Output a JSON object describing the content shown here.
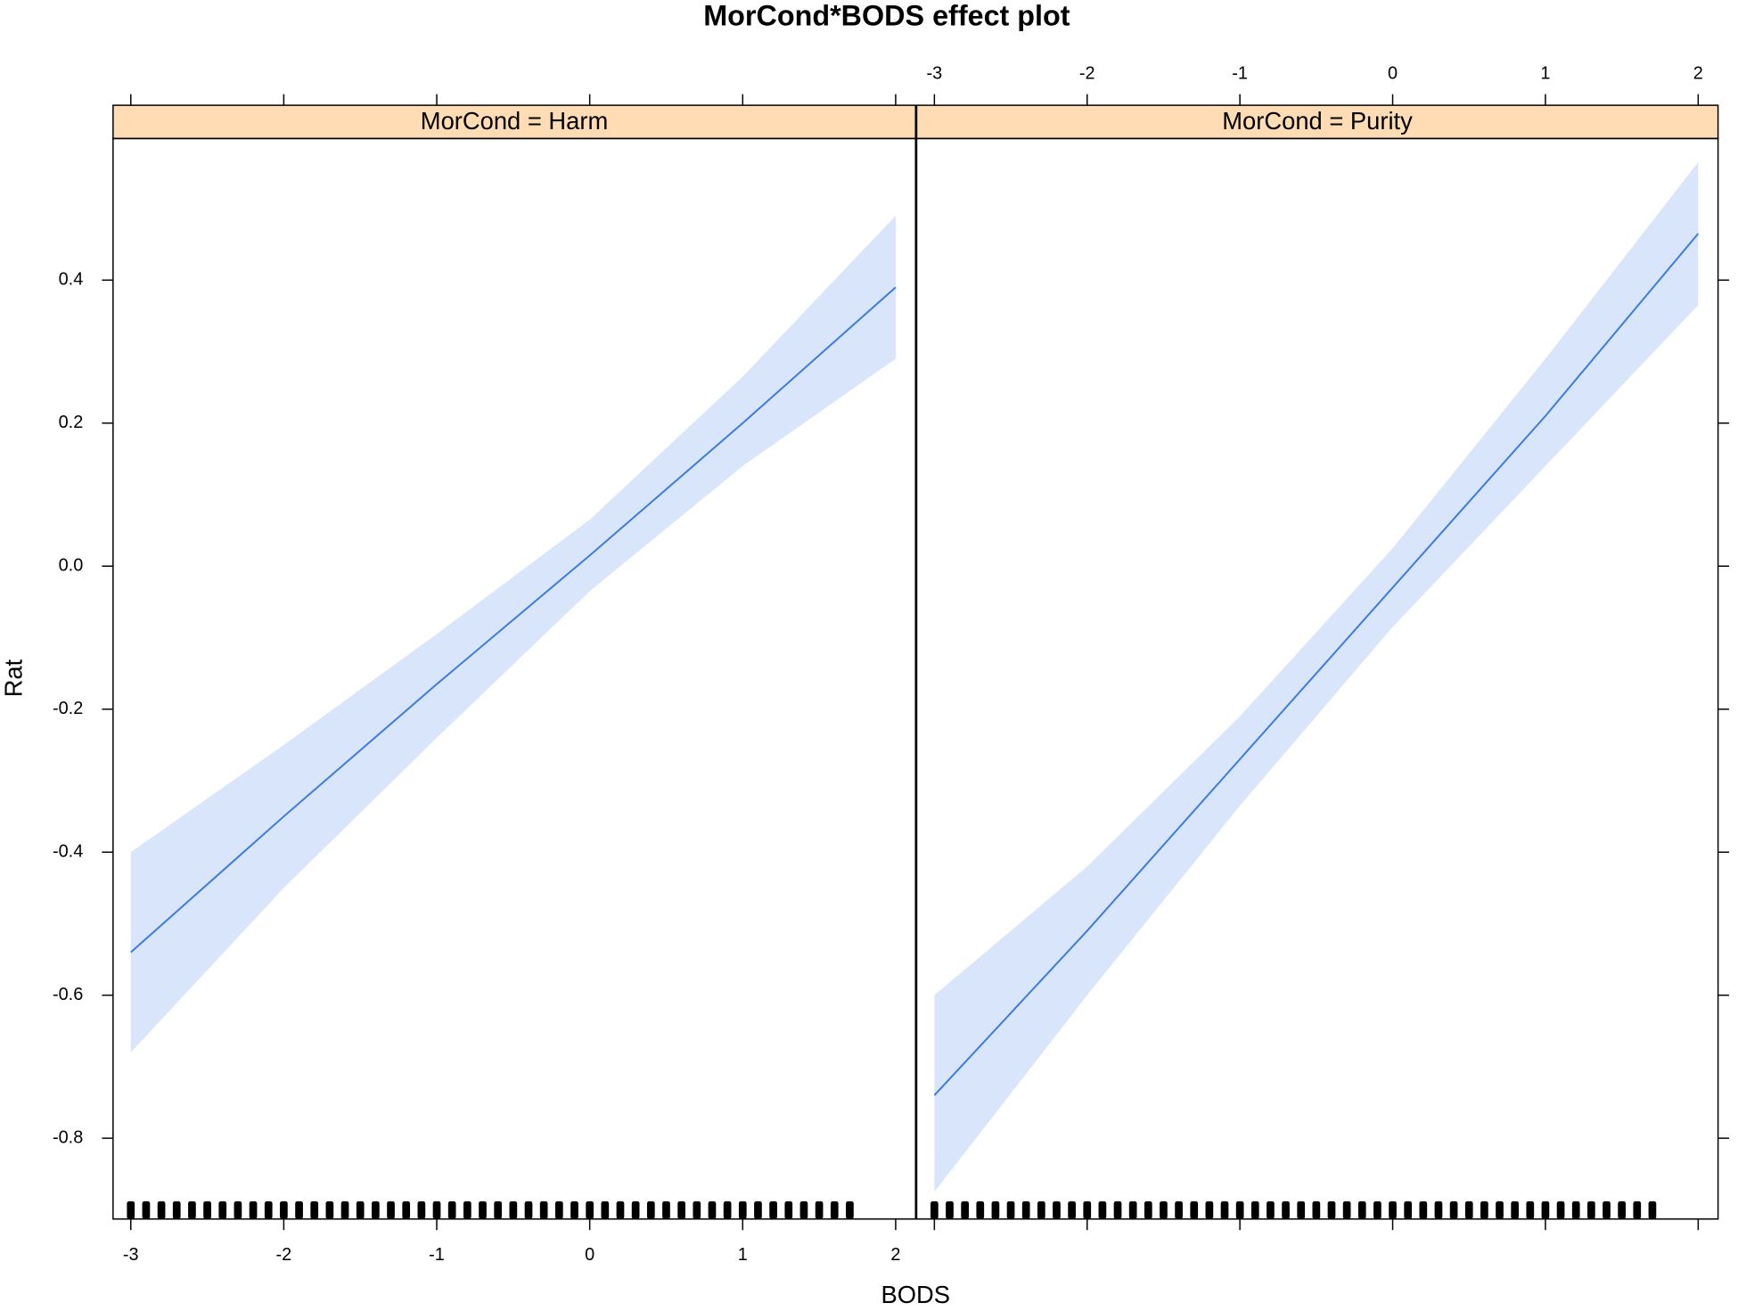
{
  "chart_data": {
    "type": "line",
    "title": "MorCond*BODS effect plot",
    "x_label": "BODS",
    "y_label": "Rat",
    "xlim": [
      -3.116,
      2.13
    ],
    "ylim": [
      -0.913,
      0.598
    ],
    "xticks": [
      -3,
      -2,
      -1,
      0,
      1,
      2
    ],
    "yticks": [
      -0.8,
      -0.6,
      -0.4,
      -0.2,
      {
        "value": 0,
        "label": "0.0"
      },
      0.2,
      0.4
    ],
    "line_color": "#3b7be0",
    "band_color": "#d9e5fb",
    "strip_color": "#ffdcb4",
    "panels": [
      {
        "strip": "MorCond = Harm",
        "x": [
          -3,
          -2,
          -1,
          0,
          1,
          2
        ],
        "values": [
          -0.54,
          -0.35,
          -0.165,
          0.015,
          0.2,
          0.39
        ],
        "lower": [
          -0.68,
          -0.45,
          -0.24,
          -0.035,
          0.14,
          0.29
        ],
        "upper": [
          -0.4,
          -0.25,
          -0.095,
          0.065,
          0.265,
          0.49
        ],
        "rug": [
          -3.0,
          -2.9,
          -2.8,
          -2.7,
          -2.6,
          -2.5,
          -2.4,
          -2.3,
          -2.2,
          -2.1,
          -2.0,
          -1.9,
          -1.8,
          -1.7,
          -1.6,
          -1.5,
          -1.4,
          -1.3,
          -1.2,
          -1.1,
          -1.0,
          -0.9,
          -0.8,
          -0.7,
          -0.6,
          -0.5,
          -0.4,
          -0.3,
          -0.2,
          -0.1,
          0.0,
          0.1,
          0.2,
          0.3,
          0.4,
          0.5,
          0.6,
          0.7,
          0.8,
          0.9,
          1.0,
          1.1,
          1.2,
          1.3,
          1.4,
          1.5,
          1.6,
          1.7
        ]
      },
      {
        "strip": "MorCond = Purity",
        "x": [
          -3,
          -2,
          -1,
          0,
          1,
          2
        ],
        "values": [
          -0.74,
          -0.51,
          -0.27,
          -0.03,
          0.21,
          0.465
        ],
        "lower": [
          -0.875,
          -0.6,
          -0.335,
          -0.085,
          0.14,
          0.365
        ],
        "upper": [
          -0.6,
          -0.42,
          -0.21,
          0.025,
          0.29,
          0.565
        ],
        "rug": [
          -3.0,
          -2.9,
          -2.8,
          -2.7,
          -2.6,
          -2.5,
          -2.4,
          -2.3,
          -2.2,
          -2.1,
          -2.0,
          -1.9,
          -1.8,
          -1.7,
          -1.6,
          -1.5,
          -1.4,
          -1.3,
          -1.2,
          -1.1,
          -1.0,
          -0.9,
          -0.8,
          -0.7,
          -0.6,
          -0.5,
          -0.4,
          -0.3,
          -0.2,
          -0.1,
          0.0,
          0.1,
          0.2,
          0.3,
          0.4,
          0.5,
          0.6,
          0.7,
          0.8,
          0.9,
          1.0,
          1.1,
          1.2,
          1.3,
          1.4,
          1.5,
          1.6,
          1.7
        ]
      }
    ]
  }
}
